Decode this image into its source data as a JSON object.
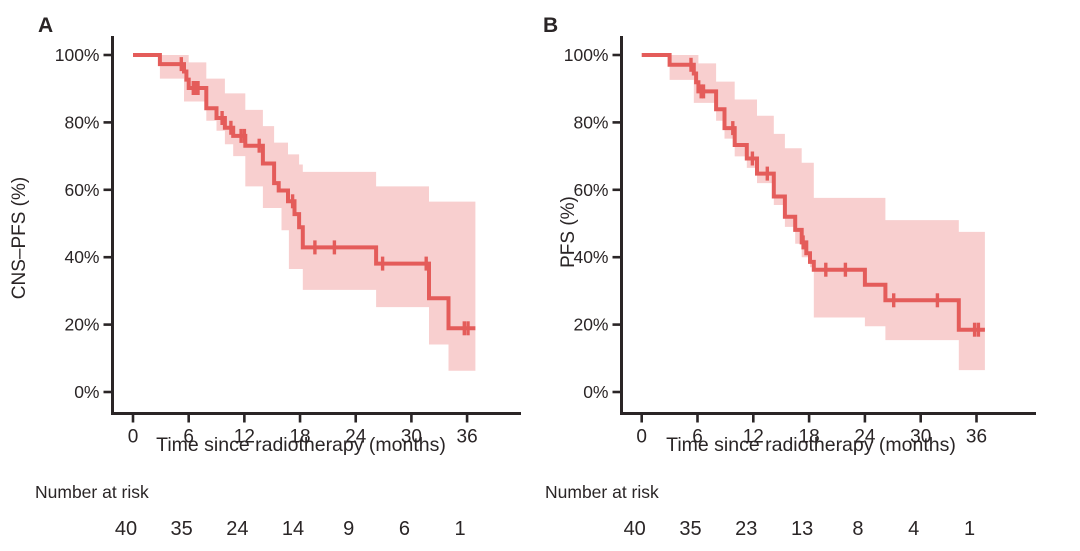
{
  "colors": {
    "curve": "#e45c5a",
    "band": "#f8cfcf",
    "axis": "#2a2526",
    "text": "#2a2526"
  },
  "chart_data": [
    {
      "type": "line",
      "subtype": "kaplan-meier-step",
      "title": "A",
      "ylabel": "CNS–PFS (%)",
      "xlabel": "Time since radiotherapy (months)",
      "xlim": [
        0,
        42
      ],
      "ylim": [
        0,
        100
      ],
      "grid": false,
      "legend": "none",
      "xticks": [
        0,
        6,
        12,
        18,
        24,
        30,
        36
      ],
      "xtick_labels": [
        "0",
        "6",
        "12",
        "18",
        "24",
        "30",
        "36"
      ],
      "ytick_values": [
        0,
        20,
        40,
        60,
        80,
        100
      ],
      "ytick_labels": [
        "0%",
        "20%",
        "40%",
        "60%",
        "80%",
        "100%"
      ],
      "end_time": 36.9,
      "steps": [
        [
          0,
          100
        ],
        [
          2.9,
          97.3
        ],
        [
          5.5,
          95.1
        ],
        [
          5.75,
          92.7
        ],
        [
          6.0,
          90.2
        ],
        [
          7.9,
          84.2
        ],
        [
          9.0,
          81.3
        ],
        [
          9.9,
          78.4
        ],
        [
          10.8,
          76.0
        ],
        [
          12.1,
          73.1
        ],
        [
          14.0,
          67.8
        ],
        [
          15.2,
          62.0
        ],
        [
          15.7,
          59.8
        ],
        [
          16.7,
          56.6
        ],
        [
          17.4,
          52.8
        ],
        [
          17.9,
          48.9
        ],
        [
          18.3,
          42.9
        ],
        [
          26.2,
          38.1
        ],
        [
          31.9,
          27.8
        ],
        [
          34.0,
          18.9
        ]
      ],
      "censors": [
        [
          5.2,
          97.3
        ],
        [
          6.5,
          90.2
        ],
        [
          6.75,
          90.2
        ],
        [
          7.0,
          90.2
        ],
        [
          9.6,
          81.3
        ],
        [
          10.55,
          78.4
        ],
        [
          11.65,
          76.0
        ],
        [
          12.0,
          76.0
        ],
        [
          13.6,
          73.1
        ],
        [
          17.2,
          56.6
        ],
        [
          19.6,
          42.9
        ],
        [
          21.7,
          42.9
        ],
        [
          26.9,
          38.1
        ],
        [
          31.6,
          38.1
        ],
        [
          35.7,
          18.9
        ],
        [
          36.1,
          18.9
        ]
      ],
      "ci_upper": [
        [
          2.9,
          100
        ],
        [
          6.0,
          97.8
        ],
        [
          7.9,
          93.0
        ],
        [
          9.9,
          88.6
        ],
        [
          12.1,
          83.7
        ],
        [
          14.0,
          78.9
        ],
        [
          15.2,
          74.0
        ],
        [
          16.7,
          70.5
        ],
        [
          17.9,
          67.5
        ],
        [
          18.3,
          65.3
        ],
        [
          26.2,
          61.0
        ],
        [
          31.9,
          56.5
        ]
      ],
      "ci_lower": [
        [
          2.9,
          93.0
        ],
        [
          5.5,
          86.2
        ],
        [
          7.9,
          80.5
        ],
        [
          9.0,
          77.5
        ],
        [
          9.9,
          73.5
        ],
        [
          10.8,
          70.0
        ],
        [
          12.1,
          61.0
        ],
        [
          14.0,
          54.6
        ],
        [
          16.0,
          48.0
        ],
        [
          16.8,
          36.5
        ],
        [
          18.3,
          30.3
        ],
        [
          26.2,
          25.2
        ],
        [
          31.9,
          14.1
        ],
        [
          34.0,
          6.3
        ]
      ],
      "number_at_risk": {
        "label": "Number at risk",
        "times": [
          0,
          6,
          12,
          18,
          24,
          30,
          36
        ],
        "values": [
          "40",
          "35",
          "24",
          "14",
          "9",
          "6",
          "1"
        ]
      }
    },
    {
      "type": "line",
      "subtype": "kaplan-meier-step",
      "title": "B",
      "ylabel": "PFS (%)",
      "xlabel": "Time since radiotherapy (months)",
      "xlim": [
        0,
        42
      ],
      "ylim": [
        0,
        100
      ],
      "grid": false,
      "legend": "none",
      "xticks": [
        0,
        6,
        12,
        18,
        24,
        30,
        36
      ],
      "xtick_labels": [
        "0",
        "6",
        "12",
        "18",
        "24",
        "30",
        "36"
      ],
      "ytick_values": [
        0,
        20,
        40,
        60,
        80,
        100
      ],
      "ytick_labels": [
        "0%",
        "20%",
        "40%",
        "60%",
        "80%",
        "100%"
      ],
      "end_time": 36.9,
      "steps": [
        [
          0,
          100
        ],
        [
          3.0,
          97.1
        ],
        [
          5.6,
          94.5
        ],
        [
          5.85,
          91.9
        ],
        [
          6.1,
          89.2
        ],
        [
          8.0,
          83.9
        ],
        [
          8.9,
          78.3
        ],
        [
          10.0,
          73.3
        ],
        [
          11.3,
          69.3
        ],
        [
          12.4,
          64.8
        ],
        [
          14.2,
          58.0
        ],
        [
          15.4,
          52.0
        ],
        [
          16.5,
          48.1
        ],
        [
          17.2,
          44.4
        ],
        [
          17.7,
          41.2
        ],
        [
          18.1,
          38.6
        ],
        [
          18.5,
          36.3
        ],
        [
          24.0,
          31.8
        ],
        [
          26.2,
          27.2
        ],
        [
          34.1,
          18.5
        ]
      ],
      "censors": [
        [
          5.3,
          97.1
        ],
        [
          6.4,
          89.2
        ],
        [
          6.65,
          89.2
        ],
        [
          9.8,
          78.3
        ],
        [
          11.9,
          69.3
        ],
        [
          13.5,
          64.8
        ],
        [
          17.35,
          44.4
        ],
        [
          19.8,
          36.3
        ],
        [
          21.9,
          36.3
        ],
        [
          27.1,
          27.2
        ],
        [
          31.8,
          27.2
        ],
        [
          35.8,
          18.5
        ],
        [
          36.2,
          18.5
        ]
      ],
      "ci_upper": [
        [
          3.0,
          100
        ],
        [
          6.1,
          97.5
        ],
        [
          8.0,
          92.1
        ],
        [
          10.0,
          86.8
        ],
        [
          12.4,
          82.0
        ],
        [
          14.2,
          76.6
        ],
        [
          15.4,
          72.3
        ],
        [
          17.2,
          68.0
        ],
        [
          18.5,
          57.6
        ],
        [
          26.2,
          51.0
        ],
        [
          34.1,
          47.5
        ]
      ],
      "ci_lower": [
        [
          3.0,
          92.6
        ],
        [
          5.6,
          85.8
        ],
        [
          8.0,
          80.5
        ],
        [
          8.9,
          75.2
        ],
        [
          10.0,
          69.9
        ],
        [
          11.3,
          66.5
        ],
        [
          12.4,
          62.0
        ],
        [
          14.2,
          55.5
        ],
        [
          15.4,
          49.0
        ],
        [
          16.5,
          44.0
        ],
        [
          17.2,
          40.0
        ],
        [
          18.1,
          37.0
        ],
        [
          18.5,
          22.1
        ],
        [
          24.0,
          19.5
        ],
        [
          26.2,
          15.4
        ],
        [
          34.1,
          6.5
        ]
      ],
      "number_at_risk": {
        "label": "Number at risk",
        "times": [
          0,
          6,
          12,
          18,
          24,
          30,
          36
        ],
        "values": [
          "40",
          "35",
          "23",
          "13",
          "8",
          "4",
          "1"
        ]
      }
    }
  ]
}
